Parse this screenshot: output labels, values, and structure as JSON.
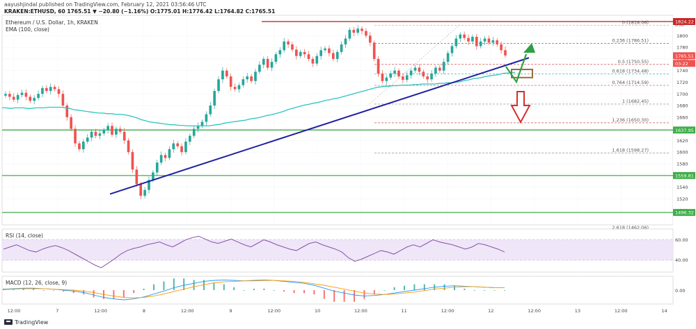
{
  "header": {
    "published": "aayushjindal published on TradingView.com, February 12, 2021 03:56:46 UTC",
    "symbol_line": "KRAKEN:ETHUSD, 60  1765.51 ▼ −20.80 (−1.16%)  O:1775.01  H:1776.42  L:1764.82  C:1765.51"
  },
  "legend": {
    "title": "Ethereum / U.S. Dollar, 1h, KRAKEN",
    "ema": "EMA (100, close)"
  },
  "currency": "USD",
  "price_badges": {
    "top": "1824.22",
    "last": "1765.51",
    "countdown": "03:22",
    "s1": "1637.95",
    "s2": "1559.81",
    "s3": "1496.32"
  },
  "fib_labels": [
    {
      "text": "0 (1818.06)",
      "price": 1818
    },
    {
      "text": "0.236 (1786.51)",
      "price": 1786.51
    },
    {
      "text": "0.5 (1750.55)",
      "price": 1750.55
    },
    {
      "text": "0.618 (1734.48)",
      "price": 1734.48
    },
    {
      "text": "0.764 (1714.59)",
      "price": 1714.59
    },
    {
      "text": "1 (1682.45)",
      "price": 1682.45
    },
    {
      "text": "1.236 (1650.30)",
      "price": 1650.3
    },
    {
      "text": "1.618 (1598.27)",
      "price": 1598.27
    },
    {
      "text": "2.618 (1462.06)",
      "price": 1462.06
    }
  ],
  "rsi": {
    "label": "RSI (14, close)",
    "ticks": [
      "60.00",
      "40.00"
    ]
  },
  "macd": {
    "label": "MACD (12, 26, close, 9)",
    "tick": "0.00"
  },
  "footer": {
    "brand": "TradingView"
  },
  "chart_data": {
    "type": "candlestick",
    "title": "Ethereum / U.S. Dollar, 1h, KRAKEN",
    "y_axis_ticks": [
      1800,
      1780,
      1760,
      1740,
      1720,
      1700,
      1680,
      1660,
      1640,
      1620,
      1600,
      1580,
      1560,
      1540,
      1520,
      1500
    ],
    "x_axis_ticks": [
      "12:00",
      "7",
      "12:00",
      "8",
      "12:00",
      "9",
      "12:00",
      "10",
      "12:00",
      "11",
      "12:00",
      "12",
      "12:00",
      "13",
      "12:00",
      "14"
    ],
    "ylim": [
      1475,
      1835
    ],
    "candles_close": [
      1700,
      1695,
      1690,
      1698,
      1702,
      1695,
      1688,
      1693,
      1700,
      1710,
      1705,
      1712,
      1708,
      1700,
      1680,
      1660,
      1640,
      1615,
      1605,
      1618,
      1625,
      1635,
      1628,
      1632,
      1638,
      1645,
      1630,
      1640,
      1635,
      1620,
      1600,
      1570,
      1545,
      1525,
      1535,
      1552,
      1565,
      1582,
      1595,
      1590,
      1605,
      1615,
      1610,
      1600,
      1618,
      1628,
      1640,
      1645,
      1652,
      1665,
      1680,
      1705,
      1725,
      1740,
      1730,
      1712,
      1708,
      1715,
      1725,
      1730,
      1722,
      1738,
      1750,
      1760,
      1745,
      1755,
      1768,
      1775,
      1790,
      1785,
      1776,
      1765,
      1772,
      1768,
      1760,
      1752,
      1765,
      1775,
      1778,
      1770,
      1760,
      1772,
      1785,
      1795,
      1810,
      1805,
      1812,
      1808,
      1800,
      1788,
      1760,
      1735,
      1722,
      1728,
      1735,
      1740,
      1730,
      1724,
      1732,
      1740,
      1745,
      1738,
      1730,
      1725,
      1735,
      1745,
      1740,
      1755,
      1770,
      1782,
      1795,
      1802,
      1796,
      1790,
      1798,
      1782,
      1790,
      1795,
      1788,
      1792,
      1785,
      1775,
      1766
    ],
    "ema100_close": [
      1676,
      1676,
      1675,
      1676,
      1676,
      1676,
      1675,
      1675,
      1676,
      1676,
      1676,
      1677,
      1677,
      1677,
      1677,
      1676,
      1675,
      1673,
      1672,
      1671,
      1670,
      1669,
      1668,
      1667,
      1667,
      1666,
      1666,
      1665,
      1665,
      1664,
      1663,
      1661,
      1659,
      1656,
      1654,
      1652,
      1651,
      1650,
      1649,
      1648,
      1647,
      1647,
      1646,
      1646,
      1645,
      1645,
      1645,
      1645,
      1645,
      1645,
      1646,
      1647,
      1648,
      1650,
      1651,
      1652,
      1653,
      1654,
      1655,
      1657,
      1658,
      1659,
      1661,
      1663,
      1664,
      1666,
      1668,
      1670,
      1673,
      1675,
      1677,
      1679,
      1681,
      1682,
      1684,
      1685,
      1687,
      1689,
      1690,
      1692,
      1693,
      1695,
      1697,
      1699,
      1701,
      1703,
      1705,
      1707,
      1709,
      1711,
      1712,
      1713,
      1713,
      1714,
      1714,
      1715,
      1715,
      1715,
      1716,
      1716,
      1717,
      1717,
      1717,
      1717,
      1718,
      1718,
      1719,
      1719,
      1720,
      1721,
      1723,
      1724,
      1726,
      1727,
      1728,
      1730,
      1731,
      1732,
      1733,
      1735,
      1736,
      1736,
      1737
    ],
    "horizontal_levels": [
      1824.22,
      1637.95,
      1559.81,
      1496.32
    ],
    "trend_line": {
      "from": 1528,
      "to": 1762
    },
    "rsi_values": [
      52,
      55,
      58,
      54,
      50,
      48,
      52,
      55,
      57,
      54,
      50,
      45,
      40,
      35,
      30,
      26,
      32,
      38,
      45,
      50,
      53,
      55,
      58,
      60,
      62,
      58,
      55,
      60,
      65,
      68,
      70,
      66,
      62,
      60,
      63,
      66,
      62,
      58,
      55,
      60,
      65,
      62,
      58,
      55,
      52,
      50,
      55,
      60,
      62,
      58,
      55,
      52,
      48,
      40,
      35,
      38,
      42,
      46,
      50,
      48,
      45,
      50,
      55,
      58,
      55,
      60,
      65,
      62,
      60,
      58,
      55,
      52,
      55,
      60,
      58,
      55,
      52,
      48
    ],
    "macd_line": [
      2,
      3,
      4,
      4,
      3,
      2,
      0,
      -2,
      -5,
      -10,
      -15,
      -18,
      -20,
      -18,
      -14,
      -8,
      -2,
      5,
      10,
      14,
      18,
      20,
      21,
      20,
      19,
      20,
      21,
      20,
      18,
      16,
      14,
      10,
      4,
      -2,
      -6,
      -10,
      -12,
      -11,
      -9,
      -6,
      -3,
      0,
      3,
      6,
      8,
      9,
      8,
      7,
      6,
      5,
      5
    ],
    "signal_line": [
      1,
      2,
      3,
      3,
      3,
      2,
      1,
      0,
      -2,
      -5,
      -9,
      -12,
      -15,
      -16,
      -15,
      -12,
      -8,
      -3,
      2,
      7,
      11,
      15,
      17,
      18,
      19,
      19,
      20,
      20,
      19,
      18,
      16,
      13,
      10,
      6,
      2,
      -2,
      -6,
      -8,
      -9,
      -8,
      -6,
      -4,
      -1,
      2,
      4,
      6,
      7,
      7,
      6,
      5,
      5
    ]
  }
}
